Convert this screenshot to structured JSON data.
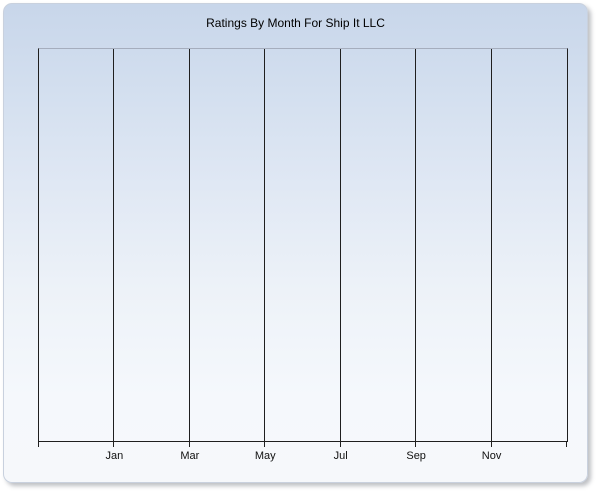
{
  "window": {
    "title": "Ratings By Month For Ship It LLC"
  },
  "chart_data": {
    "type": "line",
    "title": "Ratings By Month For Ship It LLC",
    "xlabel": "",
    "ylabel": "",
    "x_tick_labels": [
      "Jan",
      "Mar",
      "May",
      "Jul",
      "Sep",
      "Nov"
    ],
    "x_gridline_count": 8,
    "y_tick_labels": [],
    "series": [],
    "grid": "vertical-only",
    "legend": "none",
    "plot_empty": true
  },
  "colors": {
    "panel_gradient_top": "#c8d6ea",
    "panel_gradient_bottom": "#f6f8fb",
    "panel_border": "#c9d1de",
    "plot_top_border": "#a5adbd",
    "gridline": "#1f1f1f",
    "title_text": "#000000",
    "axis_label_text": "#111111"
  }
}
